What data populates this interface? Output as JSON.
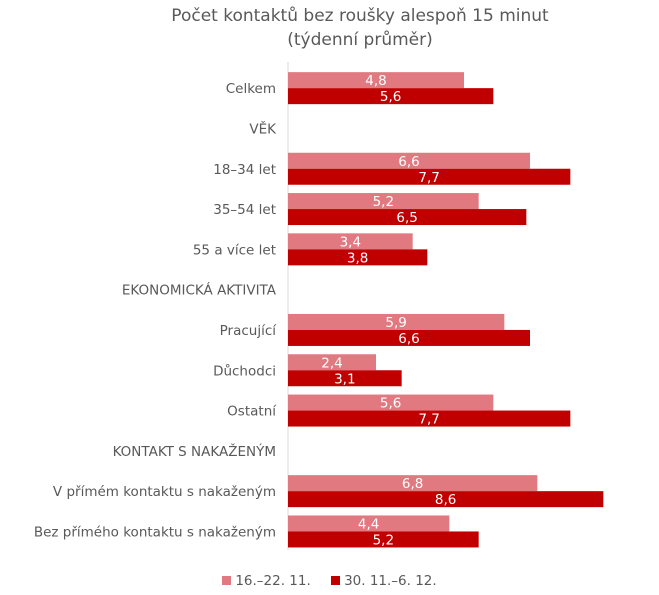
{
  "chart_data": {
    "type": "bar",
    "orientation": "horizontal",
    "title": "Počet kontaktů bez roušky alespoň 15 minut",
    "subtitle": "(týdenní průměr)",
    "categories": [
      "Celkem",
      "VĚK",
      "18–34 let",
      "35–54 let",
      "55 a více let",
      "EKONOMICKÁ AKTIVITA",
      "Pracující",
      "Důchodci",
      "Ostatní",
      "KONTAKT S NAKAŽENÝM",
      "V přímém kontaktu s nakaženým",
      "Bez přímého kontaktu s nakaženým"
    ],
    "series": [
      {
        "name": "16.–22. 11.",
        "color": "#e07a80",
        "values": [
          4.8,
          null,
          6.6,
          5.2,
          3.4,
          null,
          5.9,
          2.4,
          5.6,
          null,
          6.8,
          4.4
        ],
        "labels": [
          "4,8",
          "",
          "6,6",
          "5,2",
          "3,4",
          "",
          "5,9",
          "2,4",
          "5,6",
          "",
          "6,8",
          "4,4"
        ]
      },
      {
        "name": "30. 11.–6. 12.",
        "color": "#c00000",
        "values": [
          5.6,
          null,
          7.7,
          6.5,
          3.8,
          null,
          6.6,
          3.1,
          7.7,
          null,
          8.6,
          5.2
        ],
        "labels": [
          "5,6",
          "",
          "7,7",
          "6,5",
          "3,8",
          "",
          "6,6",
          "3,1",
          "7,7",
          "",
          "8,6",
          "5,2"
        ]
      }
    ],
    "xlim": [
      0,
      8.7
    ],
    "grid": false,
    "legend": "bottom"
  }
}
